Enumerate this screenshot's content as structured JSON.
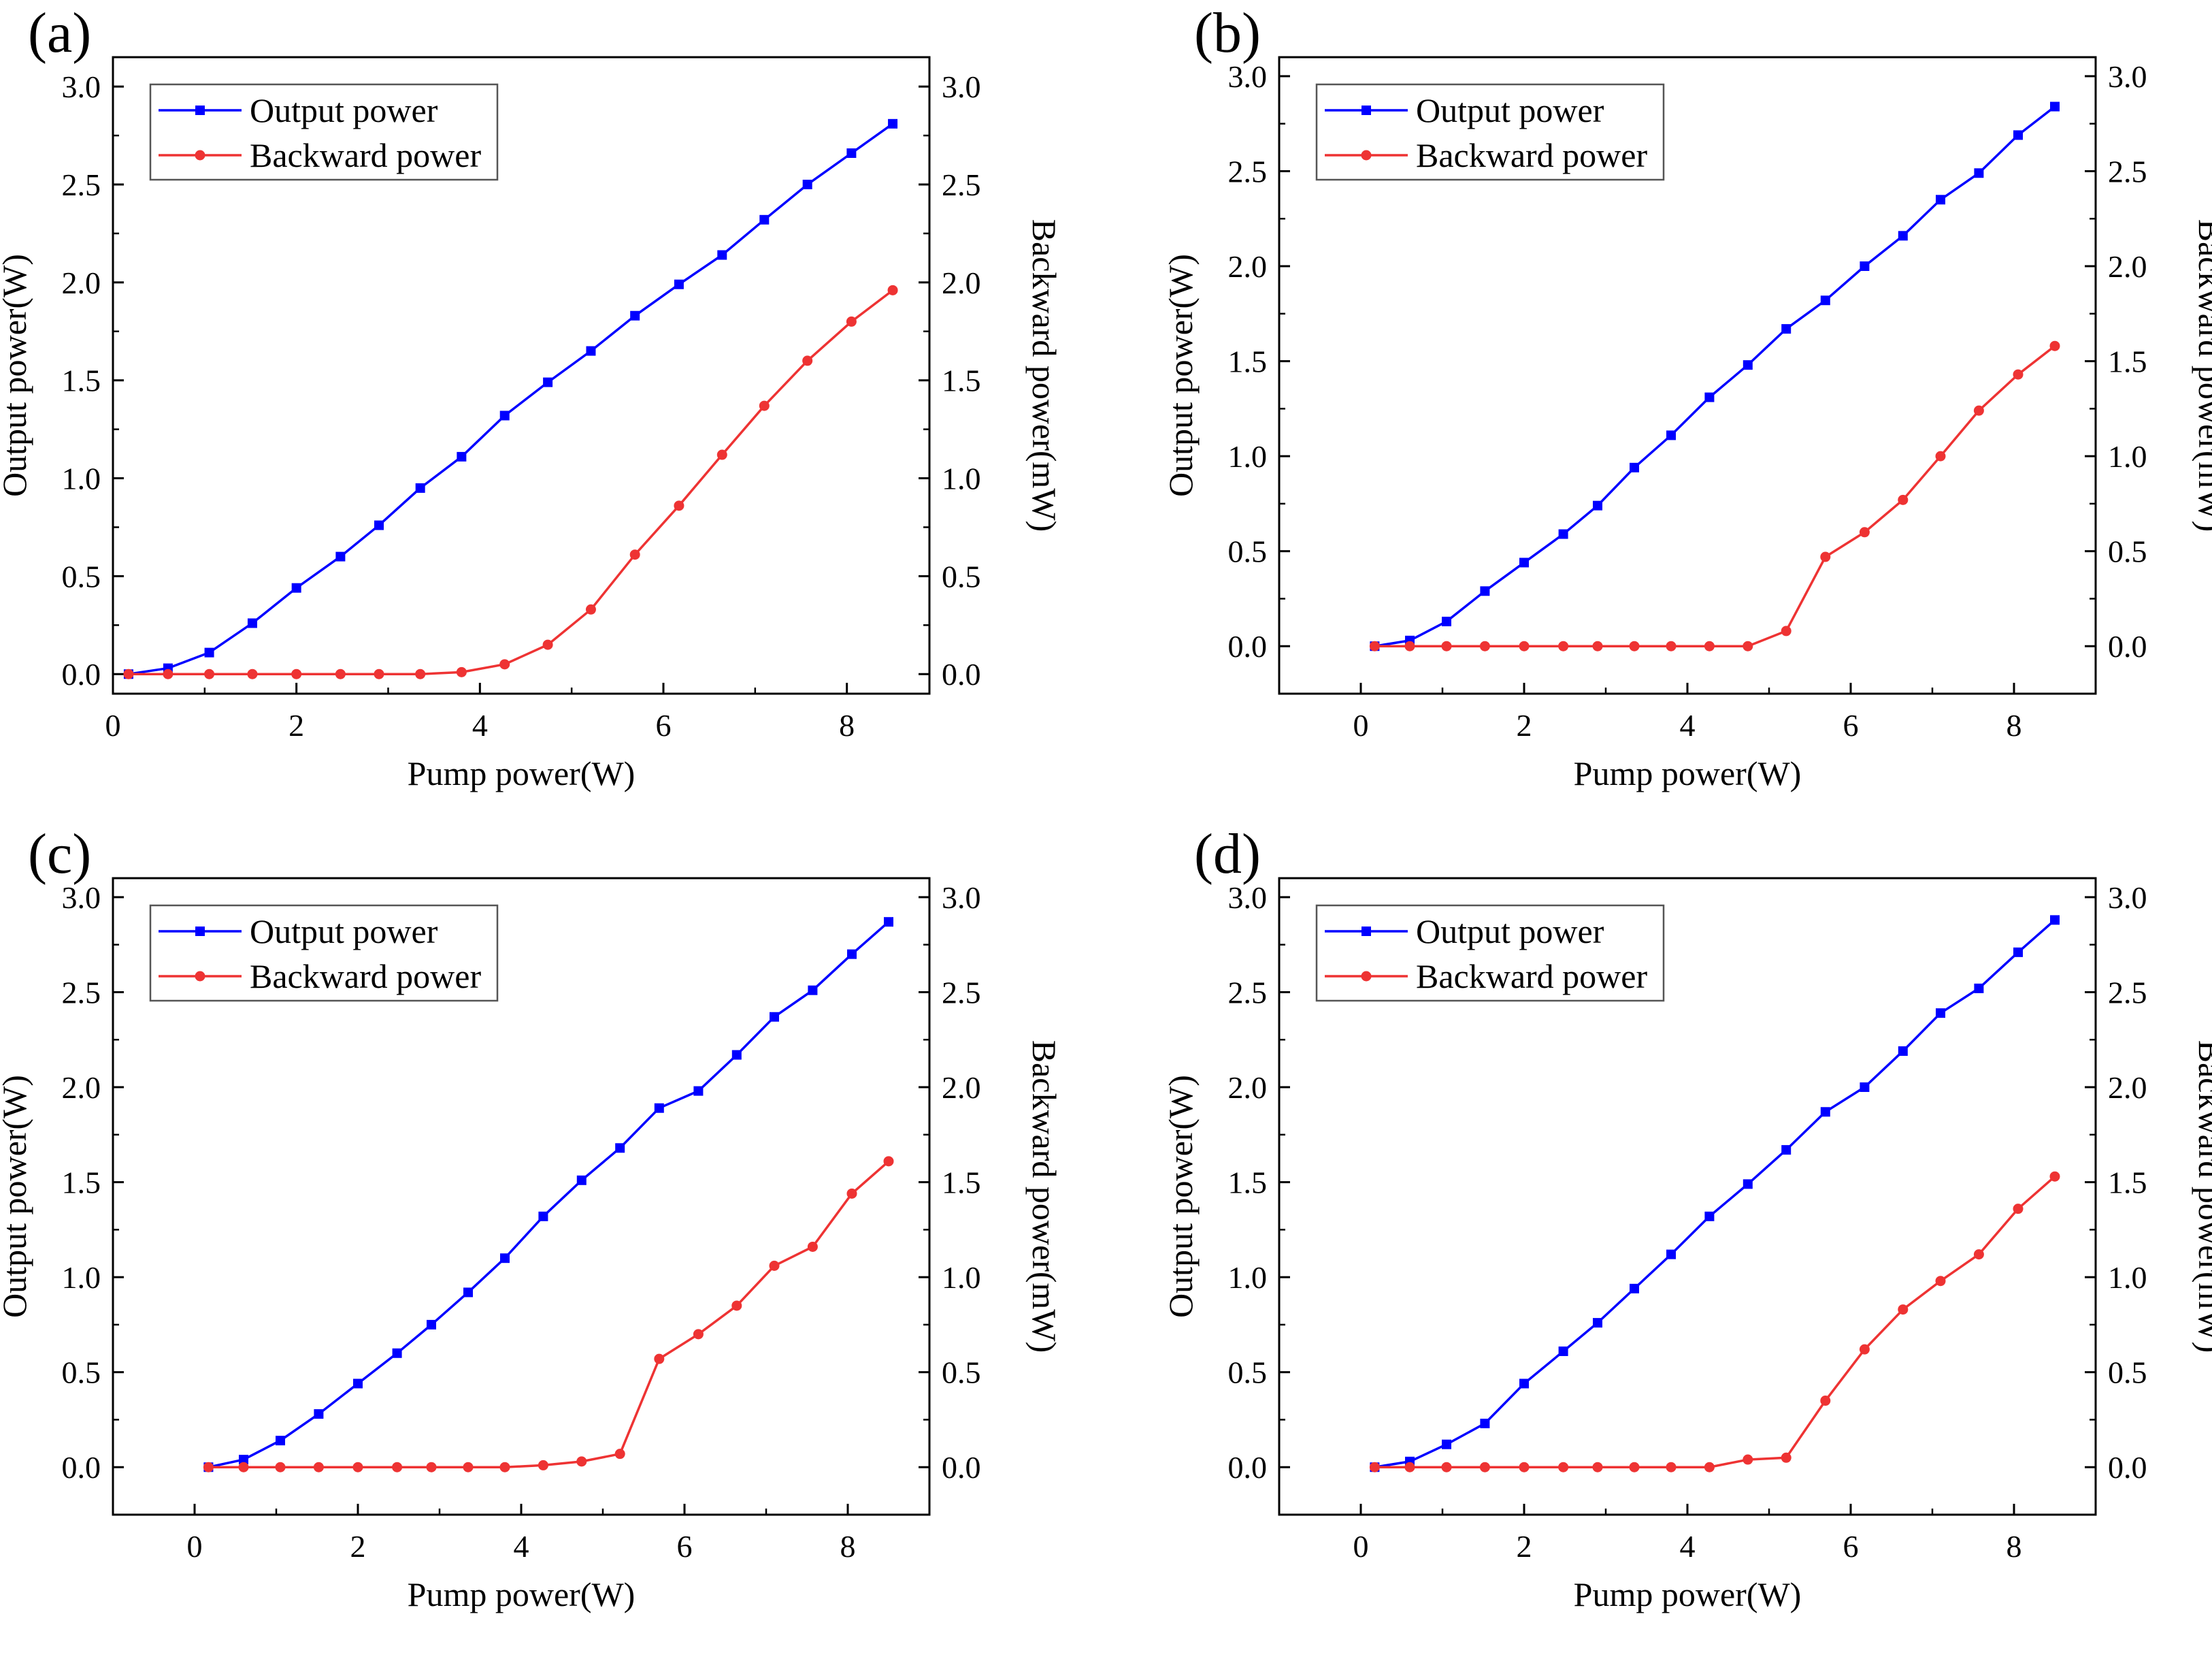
{
  "figure": {
    "colors": {
      "output": "#0000FF",
      "backward": "#EE3333",
      "axis": "#000000"
    },
    "icons": {
      "output_marker": "square-marker",
      "backward_marker": "circle-marker"
    }
  },
  "chart_data": [
    {
      "type": "line",
      "panel_label": "(a)",
      "xlabel": "Pump power(W)",
      "ylabel_left": "Output power(W)",
      "ylabel_right": "Backward power(mW)",
      "xlim": [
        0,
        8.9
      ],
      "ylim": [
        -0.1,
        3.15
      ],
      "xticks": [
        "0",
        "2",
        "4",
        "6",
        "8"
      ],
      "yticks": [
        "0.0",
        "0.5",
        "1.0",
        "1.5",
        "2.0",
        "2.5",
        "3.0"
      ],
      "yticks_right": [
        "0.0",
        "0.5",
        "1.0",
        "1.5",
        "2.0",
        "2.5",
        "3.0"
      ],
      "legend_position": "top-left",
      "grid": false,
      "x": [
        0.17,
        0.6,
        1.05,
        1.52,
        2.0,
        2.48,
        2.9,
        3.35,
        3.8,
        4.27,
        4.74,
        5.21,
        5.69,
        6.17,
        6.64,
        7.1,
        7.57,
        8.05,
        8.5
      ],
      "series": [
        {
          "name": "Output power",
          "axis": "left",
          "marker": "square",
          "values": [
            0.0,
            0.03,
            0.11,
            0.26,
            0.44,
            0.6,
            0.76,
            0.95,
            1.11,
            1.32,
            1.49,
            1.65,
            1.83,
            1.99,
            2.14,
            2.32,
            2.5,
            2.66,
            2.81
          ]
        },
        {
          "name": "Backward power",
          "axis": "right",
          "marker": "circle",
          "values": [
            0.0,
            0.0,
            0.0,
            0.0,
            0.0,
            0.0,
            0.0,
            0.0,
            0.01,
            0.05,
            0.15,
            0.33,
            0.61,
            0.86,
            1.12,
            1.37,
            1.6,
            1.8,
            1.96
          ]
        }
      ]
    },
    {
      "type": "line",
      "panel_label": "(b)",
      "xlabel": "Pump power(W)",
      "ylabel_left": "Output power(W)",
      "ylabel_right": "Backward power(mW)",
      "xlim": [
        -1,
        9
      ],
      "ylim": [
        -0.25,
        3.1
      ],
      "xticks": [
        "0",
        "2",
        "4",
        "6",
        "8"
      ],
      "yticks": [
        "0.0",
        "0.5",
        "1.0",
        "1.5",
        "2.0",
        "2.5",
        "3.0"
      ],
      "yticks_right": [
        "0.0",
        "0.5",
        "1.0",
        "1.5",
        "2.0",
        "2.5",
        "3.0"
      ],
      "legend_position": "top-left",
      "grid": false,
      "x": [
        0.17,
        0.6,
        1.05,
        1.52,
        2.0,
        2.48,
        2.9,
        3.35,
        3.8,
        4.27,
        4.74,
        5.21,
        5.69,
        6.17,
        6.64,
        7.1,
        7.57,
        8.05,
        8.5
      ],
      "series": [
        {
          "name": "Output power",
          "axis": "left",
          "marker": "square",
          "values": [
            0.0,
            0.03,
            0.13,
            0.29,
            0.44,
            0.59,
            0.74,
            0.94,
            1.11,
            1.31,
            1.48,
            1.67,
            1.82,
            2.0,
            2.16,
            2.35,
            2.49,
            2.69,
            2.84
          ]
        },
        {
          "name": "Backward power",
          "axis": "right",
          "marker": "circle",
          "values": [
            0.0,
            0.0,
            0.0,
            0.0,
            0.0,
            0.0,
            0.0,
            0.0,
            0.0,
            0.0,
            0.0,
            0.08,
            0.47,
            0.6,
            0.77,
            1.0,
            1.24,
            1.43,
            1.58
          ]
        }
      ]
    },
    {
      "type": "line",
      "panel_label": "(c)",
      "xlabel": "Pump power(W)",
      "ylabel_left": "Output power(W)",
      "ylabel_right": "Backward power(mW)",
      "xlim": [
        -1,
        9
      ],
      "ylim": [
        -0.25,
        3.1
      ],
      "xticks": [
        "0",
        "2",
        "4",
        "6",
        "8"
      ],
      "yticks": [
        "0.0",
        "0.5",
        "1.0",
        "1.5",
        "2.0",
        "2.5",
        "3.0"
      ],
      "yticks_right": [
        "0.0",
        "0.5",
        "1.0",
        "1.5",
        "2.0",
        "2.5",
        "3.0"
      ],
      "legend_position": "top-left",
      "grid": false,
      "x": [
        0.17,
        0.6,
        1.05,
        1.52,
        2.0,
        2.48,
        2.9,
        3.35,
        3.8,
        4.27,
        4.74,
        5.21,
        5.69,
        6.17,
        6.64,
        7.1,
        7.57,
        8.05,
        8.5
      ],
      "series": [
        {
          "name": "Output power",
          "axis": "left",
          "marker": "square",
          "values": [
            0.0,
            0.04,
            0.14,
            0.28,
            0.44,
            0.6,
            0.75,
            0.92,
            1.1,
            1.32,
            1.51,
            1.68,
            1.89,
            1.98,
            2.17,
            2.37,
            2.51,
            2.7,
            2.87
          ]
        },
        {
          "name": "Backward power",
          "axis": "right",
          "marker": "circle",
          "values": [
            0.0,
            0.0,
            0.0,
            0.0,
            0.0,
            0.0,
            0.0,
            0.0,
            0.0,
            0.01,
            0.03,
            0.07,
            0.57,
            0.7,
            0.85,
            1.06,
            1.16,
            1.44,
            1.61
          ]
        }
      ]
    },
    {
      "type": "line",
      "panel_label": "(d)",
      "xlabel": "Pump power(W)",
      "ylabel_left": "Output power(W)",
      "ylabel_right": "Backward power(mW)",
      "xlim": [
        -1,
        9
      ],
      "ylim": [
        -0.25,
        3.1
      ],
      "xticks": [
        "0",
        "2",
        "4",
        "6",
        "8"
      ],
      "yticks": [
        "0.0",
        "0.5",
        "1.0",
        "1.5",
        "2.0",
        "2.5",
        "3.0"
      ],
      "yticks_right": [
        "0.0",
        "0.5",
        "1.0",
        "1.5",
        "2.0",
        "2.5",
        "3.0"
      ],
      "legend_position": "top-left",
      "grid": false,
      "x": [
        0.17,
        0.6,
        1.05,
        1.52,
        2.0,
        2.48,
        2.9,
        3.35,
        3.8,
        4.27,
        4.74,
        5.21,
        5.69,
        6.17,
        6.64,
        7.1,
        7.57,
        8.05,
        8.5
      ],
      "series": [
        {
          "name": "Output power",
          "axis": "left",
          "marker": "square",
          "values": [
            0.0,
            0.03,
            0.12,
            0.23,
            0.44,
            0.61,
            0.76,
            0.94,
            1.12,
            1.32,
            1.49,
            1.67,
            1.87,
            2.0,
            2.19,
            2.39,
            2.52,
            2.71,
            2.88
          ]
        },
        {
          "name": "Backward power",
          "axis": "right",
          "marker": "circle",
          "values": [
            0.0,
            0.0,
            0.0,
            0.0,
            0.0,
            0.0,
            0.0,
            0.0,
            0.0,
            0.0,
            0.04,
            0.05,
            0.35,
            0.62,
            0.83,
            0.98,
            1.12,
            1.36,
            1.53
          ]
        }
      ]
    }
  ]
}
